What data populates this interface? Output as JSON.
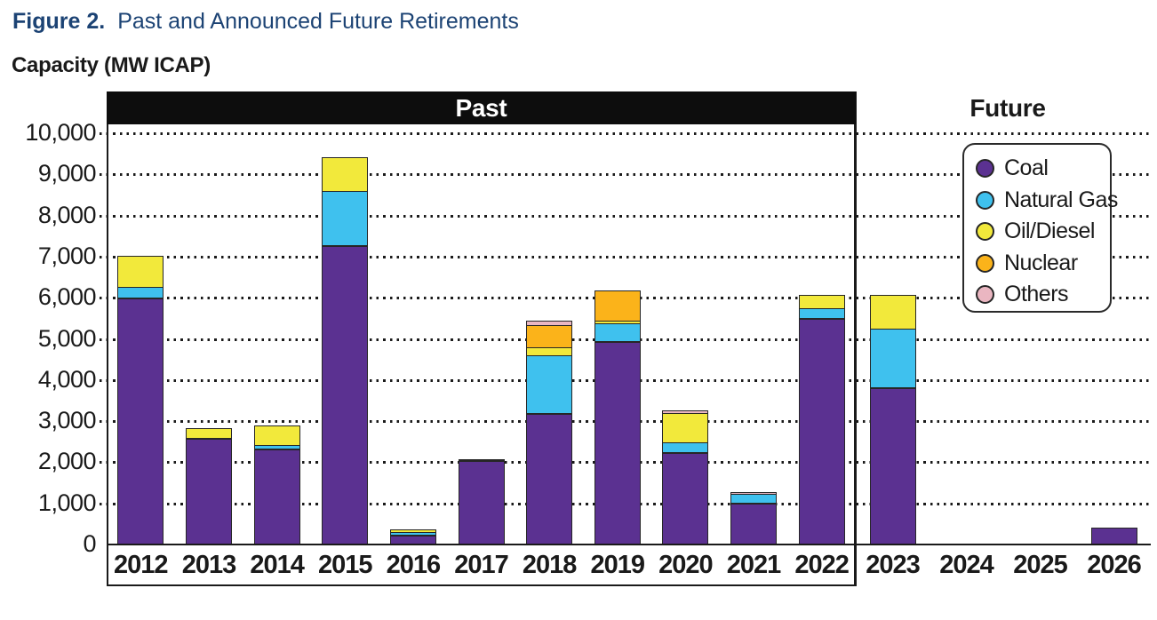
{
  "figure": {
    "label": "Figure 2.",
    "title": "Past and Announced Future Retirements"
  },
  "axis_title": "Capacity (MW ICAP)",
  "sections": {
    "past_label": "Past",
    "future_label": "Future"
  },
  "colors": {
    "coal": "#5b3191",
    "natural_gas": "#3fc1ee",
    "oil_diesel": "#f2e93b",
    "nuclear": "#fbb31a",
    "others": "#eab6c1",
    "title_blue": "#1c4374",
    "banner_black": "#0d0d0d"
  },
  "chart_data": {
    "type": "stacked_bar",
    "title": "Past and Announced Future Retirements",
    "ylabel": "Capacity (MW ICAP)",
    "categories": [
      "2012",
      "2013",
      "2014",
      "2015",
      "2016",
      "2017",
      "2018",
      "2019",
      "2020",
      "2021",
      "2022",
      "2023",
      "2024",
      "2025",
      "2026"
    ],
    "series": [
      {
        "name": "Coal",
        "color": "#5b3191",
        "values": [
          5980,
          2570,
          2310,
          7265,
          210,
          2020,
          3180,
          4920,
          2230,
          1000,
          5480,
          3800,
          0,
          0,
          420
        ]
      },
      {
        "name": "Natural Gas",
        "color": "#3fc1ee",
        "values": [
          280,
          0,
          100,
          1340,
          85,
          0,
          1420,
          460,
          250,
          230,
          270,
          1450,
          0,
          0,
          0
        ]
      },
      {
        "name": "Oil/Diesel",
        "color": "#f2e93b",
        "values": [
          790,
          260,
          520,
          835,
          115,
          60,
          220,
          90,
          750,
          0,
          350,
          850,
          0,
          0,
          0
        ]
      },
      {
        "name": "Nuclear",
        "color": "#fbb31a",
        "values": [
          0,
          0,
          0,
          0,
          0,
          0,
          580,
          780,
          0,
          0,
          0,
          0,
          0,
          0,
          0
        ]
      },
      {
        "name": "Others",
        "color": "#eab6c1",
        "values": [
          0,
          0,
          0,
          0,
          0,
          0,
          150,
          0,
          100,
          80,
          0,
          0,
          0,
          0,
          0
        ]
      }
    ],
    "totals": [
      7050,
      2830,
      2930,
      9440,
      410,
      2080,
      5550,
      6250,
      3330,
      1310,
      6100,
      6100,
      0,
      0,
      420
    ],
    "ylim": [
      0,
      10000
    ],
    "ytick_interval": 1000,
    "ytick_labels": [
      "0",
      "1,000",
      "2,000",
      "3,000",
      "4,000",
      "5,000",
      "6,000",
      "7,000",
      "8,000",
      "9,000",
      "10,000"
    ],
    "grid": "horizontal dotted",
    "legend_position": "upper right",
    "sections": [
      {
        "label": "Past",
        "categories": [
          "2012",
          "2022"
        ]
      },
      {
        "label": "Future",
        "categories": [
          "2023",
          "2026"
        ]
      }
    ]
  }
}
